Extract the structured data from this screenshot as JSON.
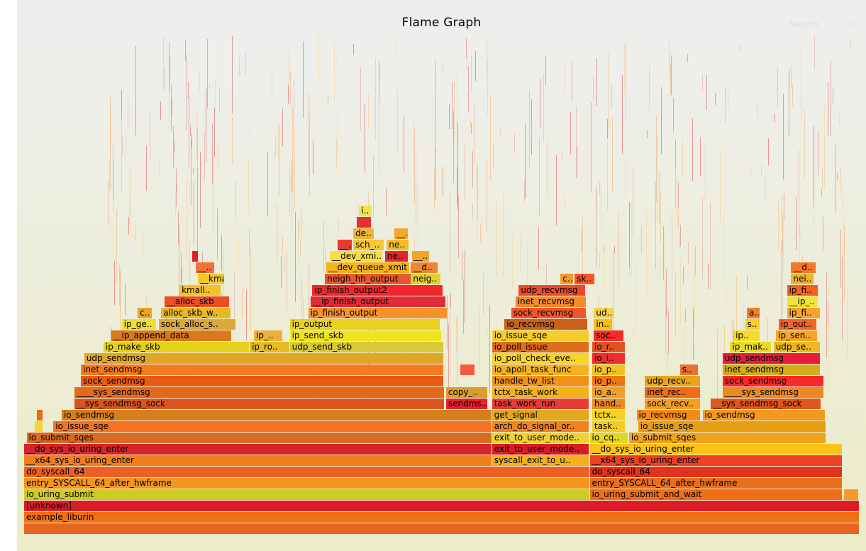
{
  "title": "Flame Graph",
  "search_label": "Search",
  "ic_label": "ic",
  "chart_data": {
    "type": "flamegraph",
    "title": "Flame Graph",
    "palette": [
      "#e86c14",
      "#f4a020",
      "#d64b18",
      "#dd2a1f",
      "#e0c21c",
      "#f07820",
      "#c8c427",
      "#f3d53a",
      "#ef5a27",
      "#e3ae1c"
    ],
    "frames": [
      {
        "label": "",
        "x0": 0.0,
        "w": 1.0,
        "d": 0,
        "c": "#e8631f"
      },
      {
        "label": "example_liburin",
        "x0": 0.0,
        "w": 1.0,
        "d": 1,
        "c": "#ee7213"
      },
      {
        "label": "[unknown]",
        "x0": 0.0,
        "w": 1.0,
        "d": 2,
        "c": "#dd1b24"
      },
      {
        "label": "io_uring_submit",
        "x0": 0.0,
        "w": 0.677,
        "d": 3,
        "c": "#cdcc25"
      },
      {
        "label": "io_uring_submit_and_wait",
        "x0": 0.677,
        "w": 0.303,
        "d": 3,
        "c": "#ef6e18"
      },
      {
        "label": "",
        "x0": 0.981,
        "w": 0.018,
        "d": 3,
        "c": "#f69a27"
      },
      {
        "label": "entry_SYSCALL_64_after_hwframe",
        "x0": 0.0,
        "w": 0.677,
        "d": 4,
        "c": "#f2961e"
      },
      {
        "label": "entry_SYSCALL_64_after_hwframe",
        "x0": 0.677,
        "w": 0.303,
        "d": 4,
        "c": "#e9701b"
      },
      {
        "label": "do_syscall_64",
        "x0": 0.0,
        "w": 0.677,
        "d": 5,
        "c": "#ef5f23"
      },
      {
        "label": "do_syscall_64",
        "x0": 0.677,
        "w": 0.303,
        "d": 5,
        "c": "#e2311c"
      },
      {
        "label": "__x64_sys_io_uring_enter",
        "x0": 0.0,
        "w": 0.56,
        "d": 6,
        "c": "#f07e1b"
      },
      {
        "label": "syscall_exit_to_u..",
        "x0": 0.56,
        "w": 0.117,
        "d": 6,
        "c": "#f2b020"
      },
      {
        "label": "__x64_sys_io_uring_enter",
        "x0": 0.677,
        "w": 0.303,
        "d": 6,
        "c": "#ef3f24"
      },
      {
        "label": "__do_sys_io_uring_enter",
        "x0": 0.0,
        "w": 0.56,
        "d": 7,
        "c": "#d3262a"
      },
      {
        "label": "exit_to_user_mode..",
        "x0": 0.56,
        "w": 0.117,
        "d": 7,
        "c": "#d81d26"
      },
      {
        "label": "__do_sys_io_uring_enter",
        "x0": 0.677,
        "w": 0.303,
        "d": 7,
        "c": "#fbc21a"
      },
      {
        "label": "io_submit_sqes",
        "x0": 0.003,
        "w": 0.557,
        "d": 8,
        "c": "#da6a1f"
      },
      {
        "label": "exit_to_user_mode..",
        "x0": 0.56,
        "w": 0.117,
        "d": 8,
        "c": "#f0d033"
      },
      {
        "label": "io_cq..",
        "x0": 0.677,
        "w": 0.046,
        "d": 8,
        "c": "#e6d524"
      },
      {
        "label": "io_submit_sqes",
        "x0": 0.724,
        "w": 0.236,
        "d": 8,
        "c": "#f1a31f"
      },
      {
        "label": "",
        "x0": 0.013,
        "w": 0.01,
        "d": 9,
        "c": "#f3d53a"
      },
      {
        "label": "io_issue_sqe",
        "x0": 0.035,
        "w": 0.525,
        "d": 9,
        "c": "#f37224"
      },
      {
        "label": "arch_do_signal_or..",
        "x0": 0.56,
        "w": 0.117,
        "d": 9,
        "c": "#ef8321"
      },
      {
        "label": "task..",
        "x0": 0.68,
        "w": 0.04,
        "d": 9,
        "c": "#f6cb22"
      },
      {
        "label": "io_issue_sqe",
        "x0": 0.735,
        "w": 0.225,
        "d": 9,
        "c": "#e69f14"
      },
      {
        "label": "",
        "x0": 0.015,
        "w": 0.008,
        "d": 10,
        "c": "#e86c14"
      },
      {
        "label": "io_sendmsg",
        "x0": 0.045,
        "w": 0.515,
        "d": 10,
        "c": "#d67f1e"
      },
      {
        "label": "get_signal",
        "x0": 0.56,
        "w": 0.117,
        "d": 10,
        "c": "#e3a91e"
      },
      {
        "label": "tctx..",
        "x0": 0.68,
        "w": 0.04,
        "d": 10,
        "c": "#f6d321"
      },
      {
        "label": "io_recvmsg",
        "x0": 0.733,
        "w": 0.077,
        "d": 10,
        "c": "#f38b19"
      },
      {
        "label": "io_sendmsg",
        "x0": 0.812,
        "w": 0.147,
        "d": 10,
        "c": "#f29a20"
      },
      {
        "label": "__sys_sendmsg_sock",
        "x0": 0.06,
        "w": 0.443,
        "d": 11,
        "c": "#d95420"
      },
      {
        "label": "sendms..",
        "x0": 0.505,
        "w": 0.05,
        "d": 11,
        "c": "#e5232c"
      },
      {
        "label": "task_work_run",
        "x0": 0.56,
        "w": 0.117,
        "d": 11,
        "c": "#e43b35"
      },
      {
        "label": "hand..",
        "x0": 0.68,
        "w": 0.04,
        "d": 11,
        "c": "#ea8b24"
      },
      {
        "label": "sock_recv..",
        "x0": 0.743,
        "w": 0.067,
        "d": 11,
        "c": "#f49e26"
      },
      {
        "label": "__sys_sendmsg_sock",
        "x0": 0.822,
        "w": 0.132,
        "d": 11,
        "c": "#e0561c"
      },
      {
        "label": "____sys_sendmsg",
        "x0": 0.06,
        "w": 0.443,
        "d": 12,
        "c": "#e36a1a"
      },
      {
        "label": "copy_..",
        "x0": 0.505,
        "w": 0.05,
        "d": 12,
        "c": "#dc9e2a"
      },
      {
        "label": "tctx_task_work",
        "x0": 0.56,
        "w": 0.117,
        "d": 12,
        "c": "#f4b215"
      },
      {
        "label": "io_a..",
        "x0": 0.68,
        "w": 0.04,
        "d": 12,
        "c": "#eda02a"
      },
      {
        "label": "inet_rec..",
        "x0": 0.743,
        "w": 0.067,
        "d": 12,
        "c": "#f16b18"
      },
      {
        "label": "____sys_sendmsg",
        "x0": 0.836,
        "w": 0.122,
        "d": 12,
        "c": "#ec8a22"
      },
      {
        "label": "sock_sendmsg",
        "x0": 0.068,
        "w": 0.435,
        "d": 13,
        "c": "#e65c14"
      },
      {
        "label": "handle_tw_list",
        "x0": 0.56,
        "w": 0.117,
        "d": 13,
        "c": "#f1921c"
      },
      {
        "label": "io_p..",
        "x0": 0.68,
        "w": 0.04,
        "d": 13,
        "c": "#ef7714"
      },
      {
        "label": "udp_recv..",
        "x0": 0.743,
        "w": 0.067,
        "d": 13,
        "c": "#e6a61e"
      },
      {
        "label": "sock_sendmsg",
        "x0": 0.836,
        "w": 0.122,
        "d": 13,
        "c": "#f82929"
      },
      {
        "label": "inet_sendmsg",
        "x0": 0.068,
        "w": 0.435,
        "d": 14,
        "c": "#f57a1f"
      },
      {
        "label": "",
        "x0": 0.522,
        "w": 0.018,
        "d": 14,
        "c": "#f55b40"
      },
      {
        "label": "io_apoll_task_func",
        "x0": 0.56,
        "w": 0.117,
        "d": 14,
        "c": "#f6b222"
      },
      {
        "label": "io_p..",
        "x0": 0.68,
        "w": 0.04,
        "d": 14,
        "c": "#f4c124"
      },
      {
        "label": "s..",
        "x0": 0.785,
        "w": 0.022,
        "d": 14,
        "c": "#e7712f"
      },
      {
        "label": "inet_sendmsg",
        "x0": 0.836,
        "w": 0.117,
        "d": 14,
        "c": "#d4ad1a"
      },
      {
        "label": "udp_sendmsg",
        "x0": 0.072,
        "w": 0.431,
        "d": 15,
        "c": "#e2a627"
      },
      {
        "label": "io_poll_check_eve..",
        "x0": 0.56,
        "w": 0.117,
        "d": 15,
        "c": "#f7d425"
      },
      {
        "label": "io_i..",
        "x0": 0.68,
        "w": 0.04,
        "d": 15,
        "c": "#ee2e2e"
      },
      {
        "label": "udp_sendmsg",
        "x0": 0.836,
        "w": 0.117,
        "d": 15,
        "c": "#e61c3d"
      },
      {
        "label": "ip_make_skb",
        "x0": 0.095,
        "w": 0.175,
        "d": 16,
        "c": "#e5d11b"
      },
      {
        "label": "ip_ro..",
        "x0": 0.27,
        "w": 0.048,
        "d": 16,
        "c": "#e6bc25"
      },
      {
        "label": "udp_send_skb",
        "x0": 0.318,
        "w": 0.185,
        "d": 16,
        "c": "#d8c93a"
      },
      {
        "label": "io_poll_issue",
        "x0": 0.56,
        "w": 0.117,
        "d": 16,
        "c": "#dd6d1b"
      },
      {
        "label": "io_r..",
        "x0": 0.68,
        "w": 0.04,
        "d": 16,
        "c": "#e15126"
      },
      {
        "label": "ip_mak..",
        "x0": 0.845,
        "w": 0.05,
        "d": 16,
        "c": "#eada2a"
      },
      {
        "label": "udp_se..",
        "x0": 0.897,
        "w": 0.056,
        "d": 16,
        "c": "#efb822"
      },
      {
        "label": "__ip_append_data",
        "x0": 0.104,
        "w": 0.145,
        "d": 17,
        "c": "#d7791c"
      },
      {
        "label": "ip_..",
        "x0": 0.275,
        "w": 0.035,
        "d": 17,
        "c": "#ecb13a"
      },
      {
        "label": "ip_send_skb",
        "x0": 0.318,
        "w": 0.182,
        "d": 17,
        "c": "#f0e420"
      },
      {
        "label": "io_issue_sqe",
        "x0": 0.56,
        "w": 0.117,
        "d": 17,
        "c": "#f5cb2e"
      },
      {
        "label": "soc..",
        "x0": 0.682,
        "w": 0.036,
        "d": 17,
        "c": "#ef2e2a"
      },
      {
        "label": "ip..",
        "x0": 0.849,
        "w": 0.032,
        "d": 17,
        "c": "#f4da2d"
      },
      {
        "label": "ip_sen..",
        "x0": 0.9,
        "w": 0.05,
        "d": 17,
        "c": "#f3a72a"
      },
      {
        "label": "ip_ge..",
        "x0": 0.117,
        "w": 0.042,
        "d": 18,
        "c": "#eadf32"
      },
      {
        "label": "sock_alloc_s..",
        "x0": 0.161,
        "w": 0.093,
        "d": 18,
        "c": "#daa93a"
      },
      {
        "label": "ip_output",
        "x0": 0.318,
        "w": 0.18,
        "d": 18,
        "c": "#ead01f"
      },
      {
        "label": "io_recvmsg",
        "x0": 0.575,
        "w": 0.1,
        "d": 18,
        "c": "#c8611a"
      },
      {
        "label": "in..",
        "x0": 0.682,
        "w": 0.022,
        "d": 18,
        "c": "#f6c218"
      },
      {
        "label": "s..",
        "x0": 0.863,
        "w": 0.018,
        "d": 18,
        "c": "#f5cf26"
      },
      {
        "label": "ip_out..",
        "x0": 0.903,
        "w": 0.046,
        "d": 18,
        "c": "#f2642a"
      },
      {
        "label": "c..",
        "x0": 0.136,
        "w": 0.018,
        "d": 19,
        "c": "#e9a426"
      },
      {
        "label": "alloc_skb_w..",
        "x0": 0.164,
        "w": 0.084,
        "d": 19,
        "c": "#e6b924"
      },
      {
        "label": "ip_finish_output",
        "x0": 0.34,
        "w": 0.167,
        "d": 19,
        "c": "#f4932b"
      },
      {
        "label": "sock_recvmsg",
        "x0": 0.583,
        "w": 0.09,
        "d": 19,
        "c": "#f0562c"
      },
      {
        "label": "ud..",
        "x0": 0.682,
        "w": 0.025,
        "d": 19,
        "c": "#f7d34d"
      },
      {
        "label": "a..",
        "x0": 0.865,
        "w": 0.016,
        "d": 19,
        "c": "#ef7e2b"
      },
      {
        "label": "ip_fi..",
        "x0": 0.913,
        "w": 0.04,
        "d": 19,
        "c": "#f6a42f"
      },
      {
        "label": "__alloc_skb",
        "x0": 0.168,
        "w": 0.078,
        "d": 20,
        "c": "#ea4f26"
      },
      {
        "label": "__ip_finish_output",
        "x0": 0.343,
        "w": 0.162,
        "d": 20,
        "c": "#e02c39"
      },
      {
        "label": "inet_recvmsg",
        "x0": 0.588,
        "w": 0.085,
        "d": 20,
        "c": "#f48a2c"
      },
      {
        "label": "__ip_..",
        "x0": 0.913,
        "w": 0.038,
        "d": 20,
        "c": "#f3e23a"
      },
      {
        "label": "kmall..",
        "x0": 0.186,
        "w": 0.05,
        "d": 21,
        "c": "#f5c12b"
      },
      {
        "label": "ip_finish_output2",
        "x0": 0.345,
        "w": 0.157,
        "d": 21,
        "c": "#f1272c"
      },
      {
        "label": "udp_recvmsg",
        "x0": 0.592,
        "w": 0.08,
        "d": 21,
        "c": "#ed4a2b"
      },
      {
        "label": "ip_fi..",
        "x0": 0.913,
        "w": 0.038,
        "d": 21,
        "c": "#f7621a"
      },
      {
        "label": "__kma..",
        "x0": 0.208,
        "w": 0.032,
        "d": 22,
        "c": "#f5c92c"
      },
      {
        "label": "neigh_hh_output",
        "x0": 0.36,
        "w": 0.105,
        "d": 22,
        "c": "#e55832"
      },
      {
        "label": "neig..",
        "x0": 0.463,
        "w": 0.036,
        "d": 22,
        "c": "#e1d232"
      },
      {
        "label": "c..",
        "x0": 0.642,
        "w": 0.016,
        "d": 22,
        "c": "#f59a2c"
      },
      {
        "label": "sk..",
        "x0": 0.659,
        "w": 0.024,
        "d": 22,
        "c": "#f5572a"
      },
      {
        "label": "nei..",
        "x0": 0.918,
        "w": 0.028,
        "d": 22,
        "c": "#eeb42d"
      },
      {
        "label": "__..",
        "x0": 0.205,
        "w": 0.023,
        "d": 23,
        "c": "#f0713a"
      },
      {
        "label": "__dev_queue_xmit",
        "x0": 0.362,
        "w": 0.1,
        "d": 23,
        "c": "#f4b319"
      },
      {
        "label": "__d..",
        "x0": 0.463,
        "w": 0.033,
        "d": 23,
        "c": "#e88736"
      },
      {
        "label": "__d..",
        "x0": 0.918,
        "w": 0.03,
        "d": 23,
        "c": "#f5772b"
      },
      {
        "label": "",
        "x0": 0.201,
        "w": 0.008,
        "d": 24,
        "c": "#e31e28"
      },
      {
        "label": "__dev_xmi..",
        "x0": 0.366,
        "w": 0.064,
        "d": 24,
        "c": "#f7df42"
      },
      {
        "label": "ne..",
        "x0": 0.432,
        "w": 0.028,
        "d": 24,
        "c": "#e8242d"
      },
      {
        "label": "__..",
        "x0": 0.464,
        "w": 0.022,
        "d": 24,
        "c": "#f1a529"
      },
      {
        "label": "__..",
        "x0": 0.375,
        "w": 0.018,
        "d": 25,
        "c": "#e73a30"
      },
      {
        "label": "sch_..",
        "x0": 0.394,
        "w": 0.037,
        "d": 25,
        "c": "#f6c734"
      },
      {
        "label": "ne..",
        "x0": 0.434,
        "w": 0.027,
        "d": 25,
        "c": "#f5bd2c"
      },
      {
        "label": "de..",
        "x0": 0.394,
        "w": 0.025,
        "d": 26,
        "c": "#f0b33b"
      },
      {
        "label": "__..",
        "x0": 0.443,
        "w": 0.017,
        "d": 26,
        "c": "#f4a82f"
      },
      {
        "label": "",
        "x0": 0.398,
        "w": 0.018,
        "d": 27,
        "c": "#e33130"
      },
      {
        "label": "i..",
        "x0": 0.401,
        "w": 0.016,
        "d": 28,
        "c": "#f3e04a"
      }
    ]
  }
}
